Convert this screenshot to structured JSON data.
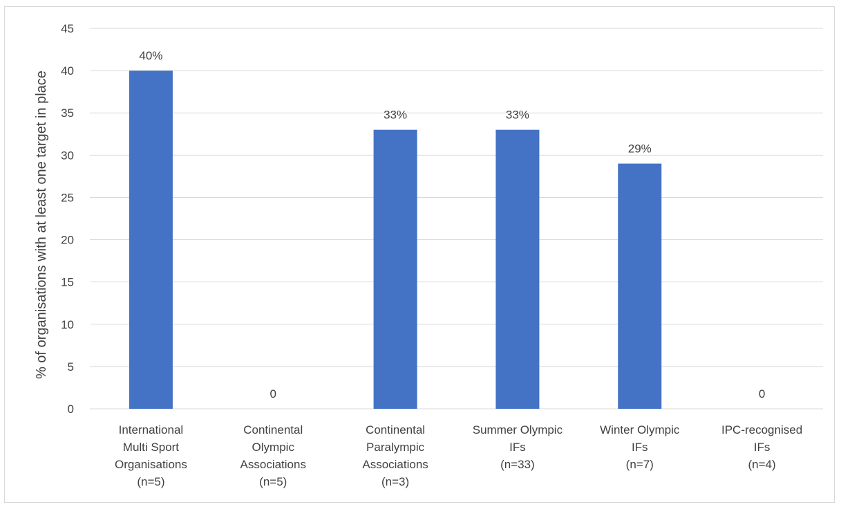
{
  "chart_data": {
    "type": "bar",
    "title": "",
    "xlabel": "",
    "ylabel": "% of organisations with at least one target in place",
    "ylim": [
      0,
      45
    ],
    "yticks": [
      0,
      5,
      10,
      15,
      20,
      25,
      30,
      35,
      40,
      45
    ],
    "grid": true,
    "legend": "none",
    "bar_color": "#4472C4",
    "categories": [
      [
        "International",
        "Multi Sport",
        "Organisations",
        "(n=5)"
      ],
      [
        "Continental",
        "Olympic",
        "Associations",
        "(n=5)"
      ],
      [
        "Continental",
        "Paralympic",
        "Associations",
        "(n=3)"
      ],
      [
        "Summer Olympic",
        "IFs",
        "(n=33)"
      ],
      [
        "Winter Olympic",
        "IFs",
        "(n=7)"
      ],
      [
        "IPC-recognised",
        "IFs",
        "(n=4)"
      ]
    ],
    "values": [
      40,
      0,
      33,
      33,
      29,
      0
    ],
    "data_labels": [
      "40%",
      "0",
      "33%",
      "33%",
      "29%",
      "0"
    ]
  }
}
